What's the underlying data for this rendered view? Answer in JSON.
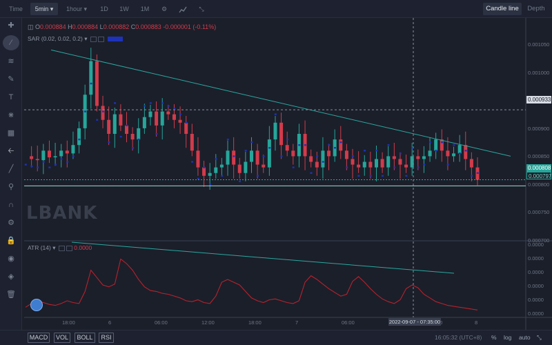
{
  "toolbar": {
    "time_label": "Time",
    "interval_label": "5min",
    "interval_alt_label": "1hour",
    "btn_1d": "1D",
    "btn_1w": "1W",
    "btn_1m": "1M",
    "candle_line_label": "Candle line",
    "depth_label": "Depth"
  },
  "legend": {
    "o_label": "O",
    "o_value": "0.000884",
    "h_label": "H",
    "h_value": "0.000884",
    "l_label": "L",
    "l_value": "0.000882",
    "c_label": "C",
    "c_value": "0.000883",
    "change": "-0.000001 (-0.11%)",
    "sar_label": "SAR (0.02, 0.02, 0.2)",
    "atr_label": "ATR (14)",
    "atr_value": "0.0000"
  },
  "watermark": "LBANK",
  "price_axis": {
    "ticks": [
      "0.001050",
      "0.001000",
      "0.000950",
      "0.000900",
      "0.000850",
      "0.000800",
      "0.000750",
      "0.000700"
    ],
    "crosshair_price": "0.000933",
    "last_price": "0.000808",
    "low_price": "0.000797"
  },
  "atr_axis": {
    "ticks": [
      "0.0000",
      "0.0000",
      "0.0000",
      "0.0000",
      "0.0000",
      "0.0000"
    ]
  },
  "time_axis": {
    "ticks": [
      "18:00",
      "6",
      "06:00",
      "12:00",
      "18:00",
      "7",
      "06:00",
      "00",
      "8"
    ],
    "crosshair_date": "2022-09-07 - 07:35:00"
  },
  "bottom": {
    "indicators": [
      "MACD",
      "VOL",
      "BOLL",
      "RSI"
    ],
    "clock": "16:05:32 (UTC+8)",
    "pct_label": "%",
    "log_label": "log",
    "auto_label": "auto"
  },
  "colors": {
    "up": "#26a69a",
    "down": "#d23b4b",
    "sar": "#1e32b8",
    "trendline": "#2aa8a0",
    "atr": "#b8222c"
  },
  "chart_data": {
    "type": "candlestick",
    "title": "",
    "xlabel": "",
    "ylabel": "",
    "ylim": [
      0.0007,
      0.00108
    ],
    "price_series": [
      0.00085,
      0.000845,
      0.000843,
      0.00086,
      0.000848,
      0.00085,
      0.00086,
      0.000855,
      0.00087,
      0.0009,
      0.00096,
      0.00102,
      0.00094,
      0.000915,
      0.00089,
      0.000925,
      0.000905,
      0.00089,
      0.00088,
      0.0009,
      0.00092,
      0.00093,
      0.000905,
      0.00093,
      0.000925,
      0.000915,
      0.00091,
      0.00089,
      0.00086,
      0.00083,
      0.000815,
      0.00082,
      0.00083,
      0.000835,
      0.00086,
      0.000835,
      0.00082,
      0.00084,
      0.00086,
      0.000835,
      0.00083,
      0.00088,
      0.00091,
      0.00087,
      0.00086,
      0.00085,
      0.00089,
      0.00085,
      0.00084,
      0.00083,
      0.00086,
      0.00085,
      0.00088,
      0.00086,
      0.000845,
      0.000835,
      0.00083,
      0.00084,
      0.00083,
      0.000845,
      0.00083,
      0.00085,
      0.000845,
      0.000835,
      0.00083,
      0.00085,
      0.000845,
      0.00085,
      0.00086,
      0.00088,
      0.00086,
      0.00085,
      0.000855,
      0.00087,
      0.000845,
      0.00083,
      0.000808
    ],
    "sar_series": [
      0.000835,
      0.000832,
      0.00083,
      0.00084,
      0.00083,
      0.000835,
      0.000845,
      0.00084,
      0.00085,
      0.00088,
      0.00093,
      0.00098,
      0.000915,
      0.00093,
      0.000875,
      0.000945,
      0.000885,
      0.000905,
      0.000865,
      0.00088,
      0.00094,
      0.000945,
      0.00089,
      0.000945,
      0.00094,
      0.000935,
      0.000925,
      0.00091,
      0.00084,
      0.00081,
      0.00083,
      0.0008,
      0.000845,
      0.000815,
      0.00088,
      0.00085,
      0.000805,
      0.00086,
      0.000875,
      0.000815,
      0.00085,
      0.000865,
      0.000925,
      0.00085,
      0.00088,
      0.00083,
      0.00087,
      0.00087,
      0.00082,
      0.00085,
      0.00084,
      0.00087,
      0.000865,
      0.000875,
      0.00083,
      0.00085,
      0.000815,
      0.00086,
      0.000815,
      0.00086,
      0.000815,
      0.00087,
      0.00083,
      0.000855,
      0.000815,
      0.000865,
      0.00083,
      0.000835,
      0.000875,
      0.00086,
      0.000875,
      0.000835,
      0.00087,
      0.000855,
      0.00086,
      0.000815,
      0.00082
    ],
    "atr_series": [
      0.8,
      1.2,
      1.5,
      1.3,
      1.1,
      1.0,
      1.2,
      1.5,
      1.3,
      1.2,
      2.5,
      4.8,
      4.0,
      3.2,
      3.0,
      3.3,
      6.0,
      5.5,
      4.8,
      3.8,
      3.0,
      2.6,
      2.5,
      2.3,
      2.2,
      2.0,
      1.8,
      1.5,
      1.4,
      1.6,
      1.3,
      1.2,
      2.0,
      3.5,
      3.8,
      3.5,
      3.2,
      2.5,
      1.8,
      1.5,
      1.3,
      1.6,
      1.7,
      1.5,
      1.3,
      1.2,
      1.5,
      3.5,
      4.2,
      3.8,
      3.3,
      2.8,
      2.4,
      2.0,
      2.2,
      3.6,
      4.1,
      3.5,
      2.8,
      2.2,
      1.7,
      1.4,
      1.2,
      1.6,
      2.8,
      3.2,
      2.9,
      2.2,
      1.8,
      1.4,
      1.2,
      1.0,
      0.9,
      0.8,
      0.7,
      0.6,
      0.5
    ]
  }
}
